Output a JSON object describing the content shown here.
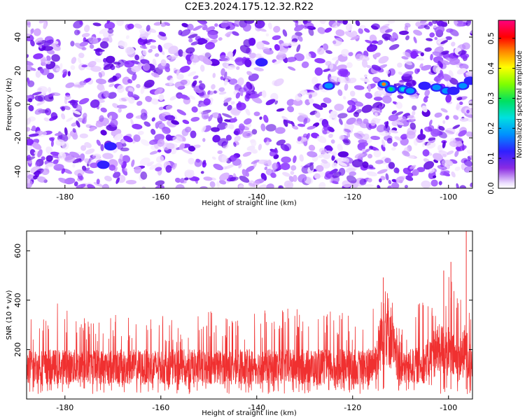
{
  "figure": {
    "title": "C2E3.2024.175.12.32.R22"
  },
  "chart_data": [
    {
      "type": "heatmap",
      "panel": "spectrogram",
      "xlabel": "Height of straight line (km)",
      "ylabel": "Frequency (Hz)",
      "xlim": [
        -188,
        -95
      ],
      "ylim": [
        -50,
        50
      ],
      "xticks": [
        -180,
        -160,
        -140,
        -120,
        -100
      ],
      "yticks": [
        -40,
        -20,
        0,
        20,
        40
      ],
      "grid": false,
      "colorbar": {
        "label": "Normalized spectral amplitude",
        "range": [
          0,
          0.56
        ],
        "ticks": [
          0.0,
          0.1,
          0.2,
          0.3,
          0.4,
          0.5
        ],
        "colormap": "rainbow (white-purple-blue-cyan-green-yellow-red-magenta)"
      },
      "hotspots": [
        {
          "x": -139,
          "y": 25,
          "value": 0.15
        },
        {
          "x": -125,
          "y": 11,
          "value": 0.18
        },
        {
          "x": -113.5,
          "y": 12,
          "value": 0.5
        },
        {
          "x": -112,
          "y": 9,
          "value": 0.3
        },
        {
          "x": -109.5,
          "y": 9,
          "value": 0.25
        },
        {
          "x": -108,
          "y": 8,
          "value": 0.2
        },
        {
          "x": -105,
          "y": 11,
          "value": 0.15
        },
        {
          "x": -102.5,
          "y": 10,
          "value": 0.22
        },
        {
          "x": -100.5,
          "y": 8,
          "value": 0.18
        },
        {
          "x": -99,
          "y": 8,
          "value": 0.15
        },
        {
          "x": -97,
          "y": 11,
          "value": 0.2
        },
        {
          "x": -95.5,
          "y": 14,
          "value": 0.12
        },
        {
          "x": -170.5,
          "y": -25,
          "value": 0.12
        },
        {
          "x": -172,
          "y": -36,
          "value": 0.1
        }
      ]
    },
    {
      "type": "line",
      "panel": "snr",
      "xlabel": "Height of straight line (km)",
      "ylabel": "SNR (10 * v/v)",
      "xlim": [
        -188,
        -95
      ],
      "ylim": [
        0,
        680
      ],
      "xticks": [
        -180,
        -160,
        -140,
        -120,
        -100
      ],
      "yticks": [
        200,
        400,
        600
      ],
      "grid": false,
      "series": [
        {
          "color": "#f03030",
          "x": [
            -188,
            -185,
            -180,
            -175,
            -170,
            -165,
            -160,
            -155,
            -150,
            -145,
            -140,
            -135,
            -130,
            -125,
            -120,
            -117,
            -115,
            -114,
            -113,
            -112,
            -111,
            -110,
            -108,
            -105,
            -103,
            -101,
            -100,
            -98,
            -97,
            -96.5,
            -96,
            -95
          ],
          "baseline": [
            130,
            130,
            130,
            130,
            130,
            130,
            130,
            130,
            130,
            130,
            130,
            130,
            130,
            130,
            130,
            130,
            160,
            260,
            300,
            250,
            160,
            120,
            130,
            140,
            190,
            200,
            190,
            150,
            180,
            200,
            170,
            140
          ],
          "peak": [
            310,
            370,
            405,
            330,
            345,
            330,
            340,
            300,
            370,
            330,
            360,
            380,
            360,
            380,
            330,
            350,
            430,
            490,
            480,
            430,
            330,
            300,
            340,
            450,
            450,
            520,
            560,
            430,
            500,
            680,
            500,
            430
          ],
          "peak_locations": [
            {
              "x": -113.6,
              "y": 492
            },
            {
              "x": -101,
              "y": 520
            },
            {
              "x": -99.5,
              "y": 555
            },
            {
              "x": -96.3,
              "y": 680
            }
          ]
        }
      ]
    }
  ]
}
